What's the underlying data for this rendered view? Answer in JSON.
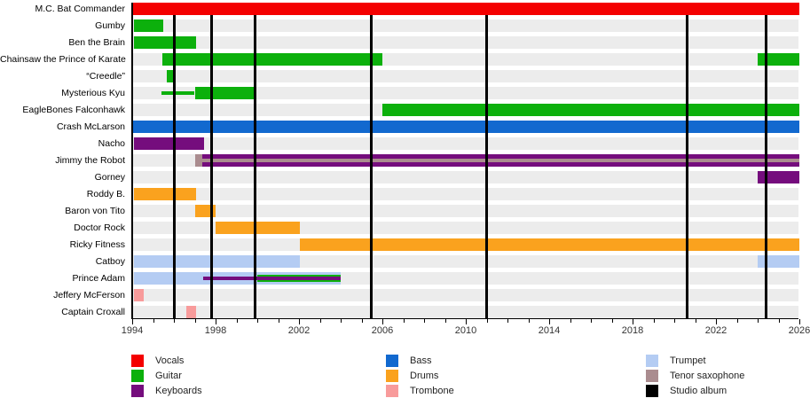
{
  "chart_data": {
    "type": "timeline",
    "description": "Band members timeline (gantt-style), instruments by color, studio albums as vertical black lines",
    "x_axis": {
      "start": 1994,
      "end": 2026,
      "major_ticks": [
        1994,
        1998,
        2002,
        2006,
        2010,
        2014,
        2018,
        2022,
        2026
      ],
      "minor_tick_interval": 1
    },
    "colors": {
      "vocals": "#f40000",
      "guitar": "#0cb00c",
      "keyboards": "#750d7d",
      "bass": "#1269cf",
      "drums": "#faa21e",
      "trombone": "#f89b9b",
      "trumpet": "#b4ccf3",
      "tenor_saxophone": "#aa8c8f",
      "studio_album": "#000000"
    },
    "row_background": "#ececec",
    "albums": [
      1996.0,
      1997.8,
      1999.9,
      2005.45,
      2011.0,
      2020.6,
      2024.4
    ],
    "members": [
      {
        "name": "M.C. Bat Commander",
        "segments": [
          {
            "instrument": "vocals",
            "start": 1994.05,
            "end": 2026,
            "style": "full"
          }
        ]
      },
      {
        "name": "Gumby",
        "segments": [
          {
            "instrument": "guitar",
            "start": 1994.1,
            "end": 1995.5,
            "style": "full"
          }
        ]
      },
      {
        "name": "Ben the Brain",
        "segments": [
          {
            "instrument": "guitar",
            "start": 1994.1,
            "end": 1997.05,
            "style": "full"
          }
        ]
      },
      {
        "name": "Chainsaw the Prince of Karate",
        "segments": [
          {
            "instrument": "guitar",
            "start": 1995.45,
            "end": 2006.0,
            "style": "full"
          },
          {
            "instrument": "guitar",
            "start": 2024.0,
            "end": 2026,
            "style": "full"
          }
        ]
      },
      {
        "name": "“Creedle”",
        "segments": [
          {
            "instrument": "guitar",
            "start": 1995.65,
            "end": 1995.95,
            "style": "full"
          }
        ]
      },
      {
        "name": "Mysterious Kyu",
        "segments": [
          {
            "instrument": "guitar",
            "start": 1995.4,
            "end": 1997.0,
            "style": "thin"
          },
          {
            "instrument": "guitar",
            "start": 1997.0,
            "end": 1999.95,
            "style": "full"
          }
        ]
      },
      {
        "name": "EagleBones Falconhawk",
        "segments": [
          {
            "instrument": "guitar",
            "start": 2006.0,
            "end": 2026,
            "style": "full"
          }
        ]
      },
      {
        "name": "Crash McLarson",
        "segments": [
          {
            "instrument": "bass",
            "start": 1994.05,
            "end": 2026,
            "style": "full"
          }
        ]
      },
      {
        "name": "Nacho",
        "segments": [
          {
            "instrument": "keyboards",
            "start": 1994.1,
            "end": 1997.45,
            "style": "full"
          }
        ]
      },
      {
        "name": "Jimmy the Robot",
        "segments": [
          {
            "instrument": "tenor_saxophone",
            "start": 1997.0,
            "end": 2026,
            "style": "full"
          },
          {
            "instrument": "keyboards",
            "start": 1997.35,
            "end": 2026,
            "style": "split"
          }
        ]
      },
      {
        "name": "Gorney",
        "segments": [
          {
            "instrument": "keyboards",
            "start": 2024.0,
            "end": 2026,
            "style": "full"
          }
        ]
      },
      {
        "name": "Roddy B.",
        "segments": [
          {
            "instrument": "drums",
            "start": 1994.1,
            "end": 1997.05,
            "style": "full"
          }
        ]
      },
      {
        "name": "Baron von Tito",
        "segments": [
          {
            "instrument": "drums",
            "start": 1997.0,
            "end": 1998.0,
            "style": "full"
          }
        ]
      },
      {
        "name": "Doctor Rock",
        "segments": [
          {
            "instrument": "drums",
            "start": 1998.0,
            "end": 2002.05,
            "style": "full"
          }
        ]
      },
      {
        "name": "Ricky Fitness",
        "segments": [
          {
            "instrument": "drums",
            "start": 2002.05,
            "end": 2026,
            "style": "full"
          }
        ]
      },
      {
        "name": "Catboy",
        "segments": [
          {
            "instrument": "trumpet",
            "start": 1994.1,
            "end": 2002.05,
            "style": "full"
          },
          {
            "instrument": "trumpet",
            "start": 2024.0,
            "end": 2026,
            "style": "full"
          }
        ]
      },
      {
        "name": "Prince Adam",
        "segments": [
          {
            "instrument": "trumpet",
            "start": 1994.1,
            "end": 2004.0,
            "style": "full"
          },
          {
            "instrument": "guitar",
            "start": 2000.0,
            "end": 2004.0,
            "style": "mid"
          },
          {
            "instrument": "keyboards",
            "start": 1997.4,
            "end": 2004.0,
            "style": "thin"
          }
        ]
      },
      {
        "name": "Jeffery McFerson",
        "segments": [
          {
            "instrument": "trombone",
            "start": 1994.1,
            "end": 1994.55,
            "style": "full"
          }
        ]
      },
      {
        "name": "Captain Croxall",
        "segments": [
          {
            "instrument": "trombone",
            "start": 1996.6,
            "end": 1997.05,
            "style": "full"
          }
        ]
      }
    ],
    "legend": {
      "columns": [
        [
          {
            "label": "Vocals",
            "color": "vocals"
          },
          {
            "label": "Guitar",
            "color": "guitar"
          },
          {
            "label": "Keyboards",
            "color": "keyboards"
          }
        ],
        [
          {
            "label": "Bass",
            "color": "bass"
          },
          {
            "label": "Drums",
            "color": "drums"
          },
          {
            "label": "Trombone",
            "color": "trombone"
          }
        ],
        [
          {
            "label": "Trumpet",
            "color": "trumpet"
          },
          {
            "label": "Tenor saxophone",
            "color": "tenor_saxophone"
          },
          {
            "label": "Studio album",
            "color": "studio_album"
          }
        ]
      ]
    }
  }
}
